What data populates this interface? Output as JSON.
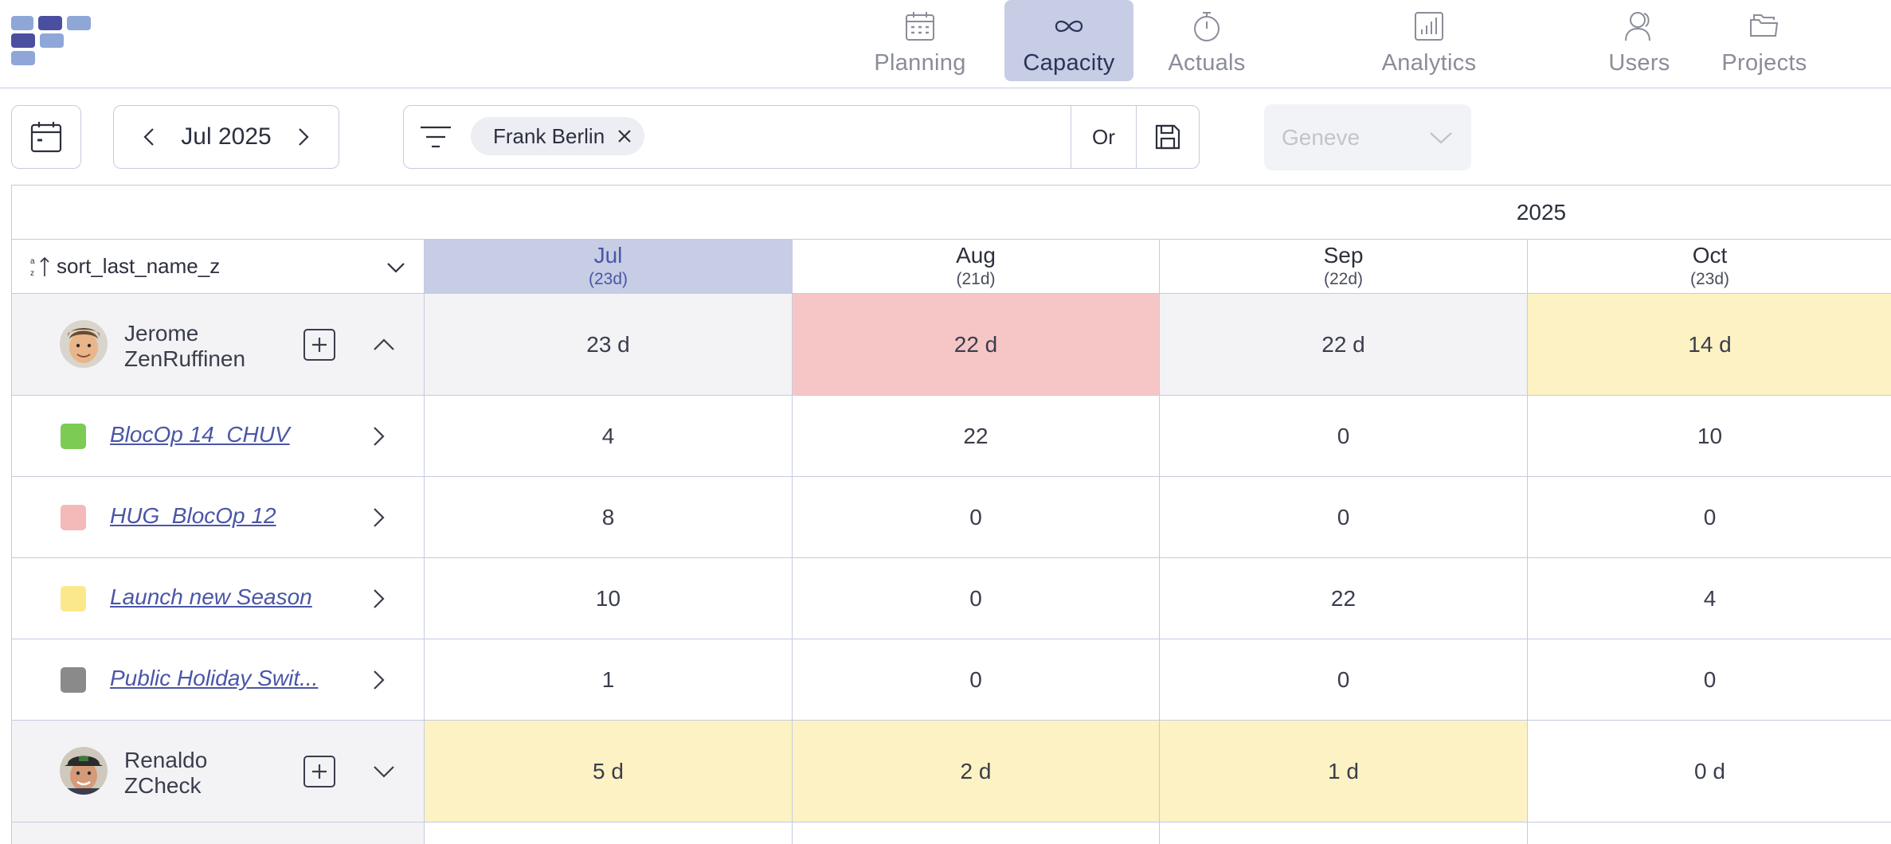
{
  "nav": {
    "items": [
      {
        "label": "Planning",
        "icon": "calendar-icon"
      },
      {
        "label": "Capacity",
        "icon": "infinity-icon",
        "active": true
      },
      {
        "label": "Actuals",
        "icon": "stopwatch-icon"
      },
      {
        "label": "Analytics",
        "icon": "bar-chart-icon"
      },
      {
        "label": "Users",
        "icon": "users-icon"
      },
      {
        "label": "Projects",
        "icon": "folders-icon"
      }
    ]
  },
  "toolbar": {
    "period_label": "Jul 2025",
    "filter_chip": "Frank Berlin",
    "logic_operator": "Or",
    "location_select": "Geneve"
  },
  "grid": {
    "year": "2025",
    "sort_label": "sort_last_name_z",
    "months": [
      {
        "name": "Jul",
        "days": "(23d)"
      },
      {
        "name": "Aug",
        "days": "(21d)"
      },
      {
        "name": "Sep",
        "days": "(22d)"
      },
      {
        "name": "Oct",
        "days": "(23d)"
      }
    ],
    "people": [
      {
        "first": "Jerome",
        "last": "ZenRuffinen",
        "expanded": true,
        "totals": [
          "23 d",
          "22 d",
          "22 d",
          "14 d"
        ],
        "projects": [
          {
            "name": "BlocOp 14_CHUV",
            "color": "#7ccb55",
            "values": [
              "4",
              "22",
              "0",
              "10"
            ]
          },
          {
            "name": "HUG_BlocOp 12",
            "color": "#f4b9b9",
            "values": [
              "8",
              "0",
              "0",
              "0"
            ]
          },
          {
            "name": "Launch new Season",
            "color": "#fbe88a",
            "values": [
              "10",
              "0",
              "22",
              "4"
            ]
          },
          {
            "name": "Public Holiday Swit...",
            "color": "#8a8a8a",
            "values": [
              "1",
              "0",
              "0",
              "0"
            ]
          }
        ]
      },
      {
        "first": "Renaldo",
        "last": "ZCheck",
        "expanded": false,
        "totals": [
          "5 d",
          "2 d",
          "1 d",
          "0 d"
        ]
      }
    ]
  },
  "colors": {
    "accent": "#4a56a6",
    "active_bg": "#c6cde4",
    "over_capacity": "#f6c6c6",
    "under_capacity": "#fdf2c4",
    "neutral": "#f3f3f5"
  }
}
